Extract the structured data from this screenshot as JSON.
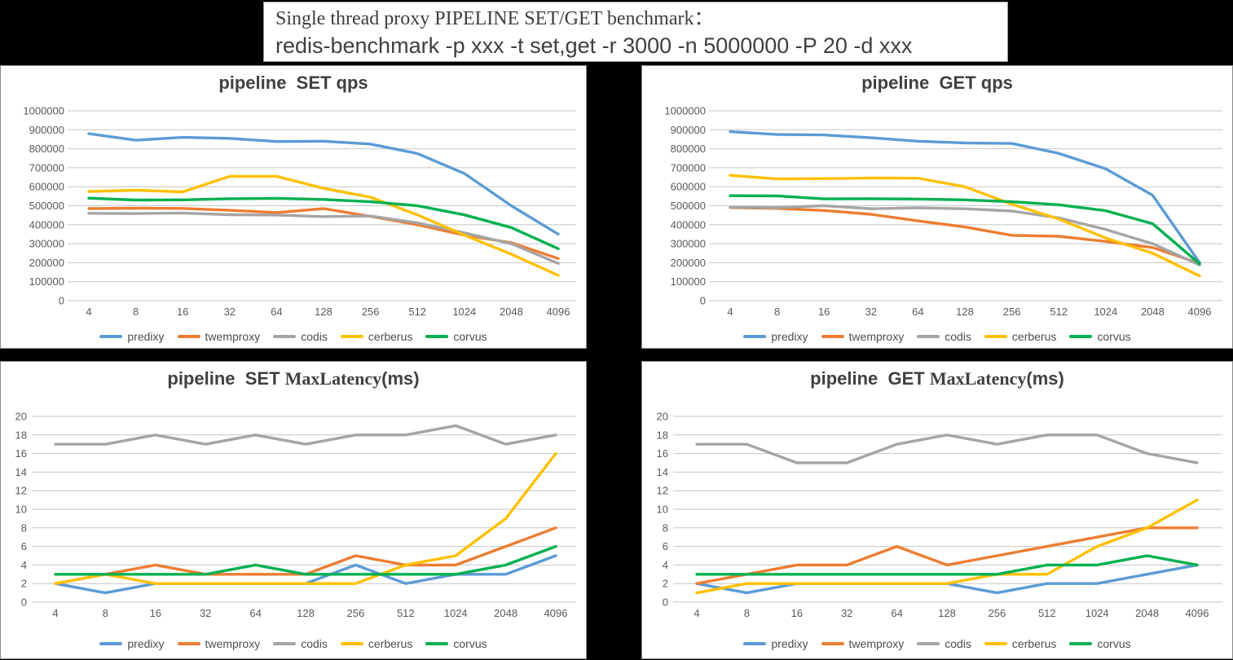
{
  "header": {
    "line1": "Single thread proxy PIPELINE SET/GET benchmark：",
    "line2": "redis-benchmark -p xxx -t set,get -r 3000 -n 5000000 -P 20 -d xxx"
  },
  "palette": {
    "predixy": "#5B9BD5",
    "twemproxy": "#ED7D31",
    "codis": "#A5A5A5",
    "cerberus": "#FFC000",
    "corvus": "#00B050"
  },
  "chart_data": [
    {
      "type": "line",
      "title_sans": "pipeline  SET qps",
      "title_serif": "",
      "title_suffix": "",
      "categories": [
        "4",
        "8",
        "16",
        "32",
        "64",
        "128",
        "256",
        "512",
        "1024",
        "2048",
        "4096"
      ],
      "ylim": [
        0,
        1000000
      ],
      "yticks": [
        0,
        100000,
        200000,
        300000,
        400000,
        500000,
        600000,
        700000,
        800000,
        900000,
        1000000
      ],
      "ytick_labels": [
        "0",
        "100000",
        "200000",
        "300000",
        "400000",
        "500000",
        "600000",
        "700000",
        "800000",
        "900000",
        "1000000"
      ],
      "grid": true,
      "legend_position": "bottom",
      "series": [
        {
          "name": "predixy",
          "color": "#5B9BD5",
          "values": [
            880000,
            845000,
            860000,
            855000,
            838000,
            840000,
            825000,
            775000,
            670000,
            500000,
            350000
          ]
        },
        {
          "name": "twemproxy",
          "color": "#ED7D31",
          "values": [
            485000,
            487000,
            486000,
            476000,
            464000,
            485000,
            444000,
            400000,
            345000,
            305000,
            222000
          ]
        },
        {
          "name": "codis",
          "color": "#A5A5A5",
          "values": [
            460000,
            459000,
            462000,
            453000,
            451000,
            443000,
            446000,
            410000,
            357000,
            300000,
            196000
          ]
        },
        {
          "name": "cerberus",
          "color": "#FFC000",
          "values": [
            575000,
            582000,
            573000,
            655000,
            655000,
            592000,
            545000,
            452000,
            345000,
            245000,
            133000
          ]
        },
        {
          "name": "corvus",
          "color": "#00B050",
          "values": [
            540000,
            530000,
            531000,
            537000,
            539000,
            533000,
            521000,
            500000,
            452000,
            385000,
            274000
          ]
        }
      ]
    },
    {
      "type": "line",
      "title_sans": "pipeline  GET qps",
      "title_serif": "",
      "title_suffix": "",
      "categories": [
        "4",
        "8",
        "16",
        "32",
        "64",
        "128",
        "256",
        "512",
        "1024",
        "2048",
        "4096"
      ],
      "ylim": [
        0,
        1000000
      ],
      "yticks": [
        0,
        100000,
        200000,
        300000,
        400000,
        500000,
        600000,
        700000,
        800000,
        900000,
        1000000
      ],
      "ytick_labels": [
        "0",
        "100000",
        "200000",
        "300000",
        "400000",
        "500000",
        "600000",
        "700000",
        "800000",
        "900000",
        "1000000"
      ],
      "grid": true,
      "legend_position": "bottom",
      "series": [
        {
          "name": "predixy",
          "color": "#5B9BD5",
          "values": [
            890000,
            875000,
            873000,
            858000,
            840000,
            831000,
            828000,
            776000,
            695000,
            555000,
            200000
          ]
        },
        {
          "name": "twemproxy",
          "color": "#ED7D31",
          "values": [
            490000,
            486000,
            475000,
            455000,
            420000,
            388000,
            344000,
            339000,
            312000,
            280000,
            196000
          ]
        },
        {
          "name": "codis",
          "color": "#A5A5A5",
          "values": [
            492000,
            490000,
            500000,
            484000,
            489000,
            484000,
            472000,
            436000,
            375000,
            300000,
            188000
          ]
        },
        {
          "name": "cerberus",
          "color": "#FFC000",
          "values": [
            660000,
            641000,
            643000,
            646000,
            645000,
            600000,
            508000,
            430000,
            330000,
            250000,
            130000
          ]
        },
        {
          "name": "corvus",
          "color": "#00B050",
          "values": [
            553000,
            552000,
            536000,
            537000,
            535000,
            531000,
            521000,
            505000,
            474000,
            405000,
            194000
          ]
        }
      ]
    },
    {
      "type": "line",
      "title_sans": "pipeline  SET ",
      "title_serif": "MaxLatency",
      "title_suffix": "(ms)",
      "categories": [
        "4",
        "8",
        "16",
        "32",
        "64",
        "128",
        "256",
        "512",
        "1024",
        "2048",
        "4096"
      ],
      "ylim": [
        0,
        20
      ],
      "yticks": [
        0,
        2,
        4,
        6,
        8,
        10,
        12,
        14,
        16,
        18,
        20
      ],
      "ytick_labels": [
        "0",
        "2",
        "4",
        "6",
        "8",
        "10",
        "12",
        "14",
        "16",
        "18",
        "20"
      ],
      "grid": true,
      "legend_position": "bottom",
      "series": [
        {
          "name": "predixy",
          "color": "#5B9BD5",
          "values": [
            2,
            1,
            2,
            2,
            2,
            2,
            4,
            2,
            3,
            3,
            5
          ]
        },
        {
          "name": "twemproxy",
          "color": "#ED7D31",
          "values": [
            2,
            3,
            4,
            3,
            3,
            3,
            5,
            4,
            4,
            6,
            8
          ]
        },
        {
          "name": "codis",
          "color": "#A5A5A5",
          "values": [
            17,
            17,
            18,
            17,
            18,
            17,
            18,
            18,
            19,
            17,
            18
          ]
        },
        {
          "name": "cerberus",
          "color": "#FFC000",
          "values": [
            2,
            3,
            2,
            2,
            2,
            2,
            2,
            4,
            5,
            9,
            16
          ]
        },
        {
          "name": "corvus",
          "color": "#00B050",
          "values": [
            3,
            3,
            3,
            3,
            4,
            3,
            3,
            3,
            3,
            4,
            6
          ]
        }
      ]
    },
    {
      "type": "line",
      "title_sans": "pipeline  GET ",
      "title_serif": "MaxLatency",
      "title_suffix": "(ms)",
      "categories": [
        "4",
        "8",
        "16",
        "32",
        "64",
        "128",
        "256",
        "512",
        "1024",
        "2048",
        "4096"
      ],
      "ylim": [
        0,
        20
      ],
      "yticks": [
        0,
        2,
        4,
        6,
        8,
        10,
        12,
        14,
        16,
        18,
        20
      ],
      "ytick_labels": [
        "0",
        "2",
        "4",
        "6",
        "8",
        "10",
        "12",
        "14",
        "16",
        "18",
        "20"
      ],
      "grid": true,
      "legend_position": "bottom",
      "series": [
        {
          "name": "predixy",
          "color": "#5B9BD5",
          "values": [
            2,
            1,
            2,
            2,
            2,
            2,
            1,
            2,
            2,
            3,
            4
          ]
        },
        {
          "name": "twemproxy",
          "color": "#ED7D31",
          "values": [
            2,
            3,
            4,
            4,
            6,
            4,
            5,
            6,
            7,
            8,
            8
          ]
        },
        {
          "name": "codis",
          "color": "#A5A5A5",
          "values": [
            17,
            17,
            15,
            15,
            17,
            18,
            17,
            18,
            18,
            16,
            15
          ]
        },
        {
          "name": "cerberus",
          "color": "#FFC000",
          "values": [
            1,
            2,
            2,
            2,
            2,
            2,
            3,
            3,
            6,
            8,
            11
          ]
        },
        {
          "name": "corvus",
          "color": "#00B050",
          "values": [
            3,
            3,
            3,
            3,
            3,
            3,
            3,
            4,
            4,
            5,
            4
          ]
        }
      ]
    }
  ]
}
